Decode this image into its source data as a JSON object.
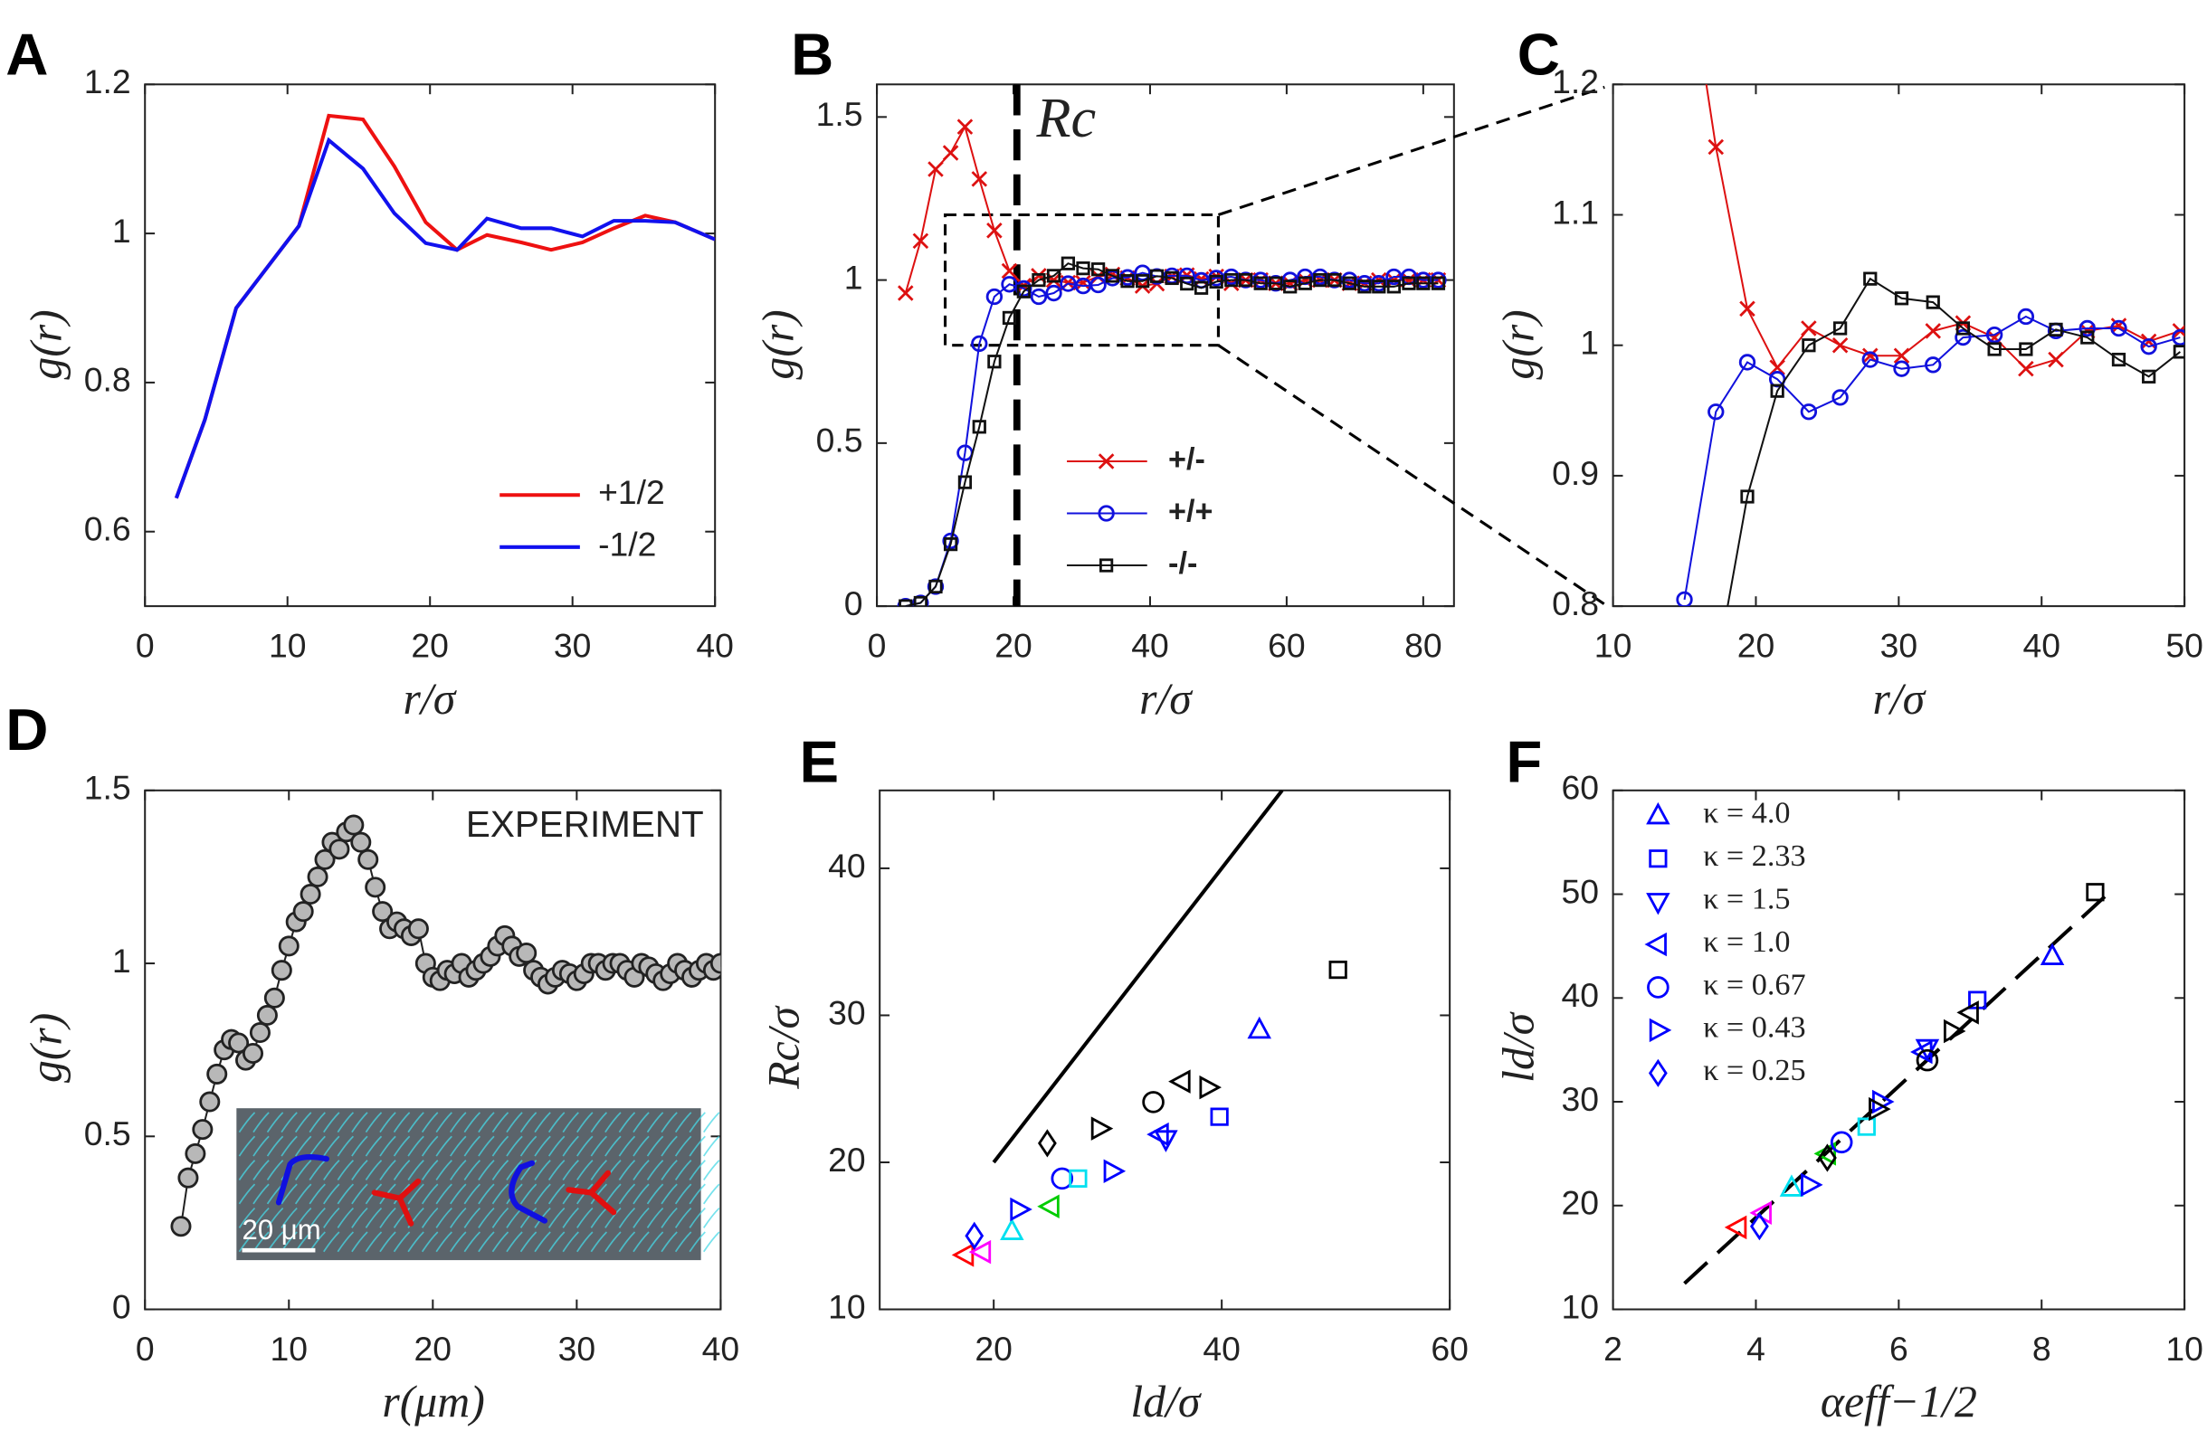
{
  "chart_data": [
    {
      "type": "line",
      "panel_label": "A",
      "xlabel": "r/σ",
      "ylabel": "g(r)",
      "xlim": [
        0,
        40
      ],
      "ylim": [
        0.5,
        1.2
      ],
      "xticks": [
        0,
        10,
        20,
        30,
        40
      ],
      "yticks": [
        0.6,
        0.8,
        1,
        1.2
      ],
      "legend_position": "lower right",
      "series": [
        {
          "name": "+1/2",
          "color": "#ee1111",
          "x": [
            2.2,
            4.2,
            6.4,
            8.6,
            10.8,
            12.9,
            15.3,
            17.5,
            19.7,
            21.9,
            24,
            26.4,
            28.5,
            30.7,
            32.9,
            35.1,
            37.2,
            40
          ],
          "values": [
            0.645,
            0.75,
            0.9,
            0.955,
            1.01,
            1.158,
            1.153,
            1.09,
            1.015,
            0.978,
            0.998,
            0.988,
            0.978,
            0.988,
            1.007,
            1.024,
            1.015,
            0.992
          ]
        },
        {
          "name": "-1/2",
          "color": "#1111ee",
          "x": [
            2.2,
            4.2,
            6.4,
            8.6,
            10.8,
            12.9,
            15.3,
            17.5,
            19.7,
            21.9,
            24,
            26.4,
            28.5,
            30.7,
            32.9,
            35.1,
            37.2,
            40
          ],
          "values": [
            0.645,
            0.75,
            0.9,
            0.955,
            1.01,
            1.125,
            1.087,
            1.027,
            0.987,
            0.978,
            1.02,
            1.007,
            1.007,
            0.996,
            1.017,
            1.017,
            1.015,
            0.992
          ]
        }
      ]
    },
    {
      "type": "line",
      "panel_label": "B",
      "xlabel": "r/σ",
      "ylabel": "g(r)",
      "xlim": [
        0,
        84.5
      ],
      "ylim": [
        0,
        1.6
      ],
      "xticks": [
        0,
        20,
        40,
        60,
        80
      ],
      "yticks": [
        0,
        0.5,
        1,
        1.5
      ],
      "legend_position": "lower center",
      "vline": {
        "x": 20.5,
        "label": "Rc"
      },
      "zoom_box": {
        "xlim": [
          10,
          50
        ],
        "ylim": [
          0.8,
          1.2
        ]
      },
      "series": [
        {
          "name": "+/-",
          "color": "#dd1111",
          "marker": "x",
          "x": [
            4.2,
            6.4,
            8.6,
            10.8,
            12.9,
            15,
            17.2,
            19.4,
            21.5,
            23.7,
            25.9,
            28,
            30.2,
            32.4,
            34.5,
            36.7,
            38.9,
            41,
            43.2,
            45.4,
            47.5,
            49.7,
            51.9,
            54,
            56.2,
            58.4,
            60.5,
            62.7,
            64.9,
            67,
            69.2,
            71.4,
            73.5,
            75.7,
            77.9,
            80,
            82.2
          ],
          "values": [
            0.96,
            1.12,
            1.34,
            1.39,
            1.47,
            1.31,
            1.152,
            1.028,
            0.983,
            1.013,
            1.0,
            0.992,
            0.992,
            1.011,
            1.017,
            1.006,
            0.982,
            0.989,
            1.011,
            1.015,
            1.003,
            1.011,
            0.99,
            1.0,
            1.0,
            0.99,
            0.99,
            1.0,
            1.0,
            1.0,
            0.99,
            0.99,
            1.0,
            1.0,
            1.0,
            1.0,
            1.0
          ]
        },
        {
          "name": "+/+",
          "color": "#1111dd",
          "marker": "circle",
          "x": [
            4.2,
            6.4,
            8.6,
            10.8,
            12.9,
            15,
            17.2,
            19.4,
            21.5,
            23.7,
            25.9,
            28,
            30.2,
            32.4,
            34.5,
            36.7,
            38.9,
            41,
            43.2,
            45.4,
            47.5,
            49.7,
            51.9,
            54,
            56.2,
            58.4,
            60.5,
            62.7,
            64.9,
            67,
            69.2,
            71.4,
            73.5,
            75.7,
            77.9,
            80,
            82.2
          ],
          "values": [
            0,
            0.01,
            0.06,
            0.2,
            0.47,
            0.805,
            0.949,
            0.987,
            0.974,
            0.949,
            0.96,
            0.989,
            0.982,
            0.985,
            1.006,
            1.008,
            1.022,
            1.011,
            1.013,
            1.013,
            0.999,
            1.006,
            1.01,
            1.0,
            1.0,
            0.99,
            1.0,
            1.01,
            1.01,
            1.0,
            1.0,
            0.99,
            0.99,
            1.01,
            1.01,
            1.0,
            1.0
          ]
        },
        {
          "name": "-/-",
          "color": "#111111",
          "marker": "square",
          "x": [
            4.2,
            6.4,
            8.6,
            10.8,
            12.9,
            15,
            17.2,
            19.4,
            21.5,
            23.7,
            25.9,
            28,
            30.2,
            32.4,
            34.5,
            36.7,
            38.9,
            41,
            43.2,
            45.4,
            47.5,
            49.7,
            51.9,
            54,
            56.2,
            58.4,
            60.5,
            62.7,
            64.9,
            67,
            69.2,
            71.4,
            73.5,
            75.7,
            77.9,
            80,
            82.2
          ],
          "values": [
            0,
            0.01,
            0.06,
            0.19,
            0.38,
            0.55,
            0.75,
            0.884,
            0.965,
            1.0,
            1.013,
            1.051,
            1.036,
            1.033,
            1.013,
            0.997,
            0.997,
            1.012,
            1.006,
            0.989,
            0.976,
            0.995,
            1.0,
            1.0,
            0.99,
            0.99,
            0.98,
            0.99,
            1.0,
            1.0,
            0.99,
            0.98,
            0.98,
            0.98,
            0.99,
            0.99,
            0.99
          ]
        }
      ]
    },
    {
      "type": "line",
      "panel_label": "C",
      "xlabel": "r/σ",
      "ylabel": "g(r)",
      "xlim": [
        10,
        50
      ],
      "ylim": [
        0.8,
        1.2
      ],
      "xticks": [
        10,
        20,
        30,
        40,
        50
      ],
      "yticks": [
        0.8,
        0.9,
        1,
        1.1,
        1.2
      ],
      "series": [
        {
          "color": "#dd1111",
          "marker": "x",
          "x": [
            15,
            17.2,
            19.4,
            21.5,
            23.7,
            25.9,
            28,
            30.2,
            32.4,
            34.5,
            36.7,
            38.9,
            41,
            43.2,
            45.4,
            47.5,
            49.7
          ],
          "values": [
            1.31,
            1.152,
            1.028,
            0.983,
            1.013,
            1.0,
            0.992,
            0.992,
            1.011,
            1.017,
            1.006,
            0.982,
            0.989,
            1.011,
            1.015,
            1.003,
            1.011
          ]
        },
        {
          "color": "#1111dd",
          "marker": "circle",
          "x": [
            15,
            17.2,
            19.4,
            21.5,
            23.7,
            25.9,
            28,
            30.2,
            32.4,
            34.5,
            36.7,
            38.9,
            41,
            43.2,
            45.4,
            47.5,
            49.7
          ],
          "values": [
            0.805,
            0.949,
            0.987,
            0.974,
            0.949,
            0.96,
            0.989,
            0.982,
            0.985,
            1.006,
            1.008,
            1.022,
            1.011,
            1.013,
            1.013,
            0.999,
            1.006
          ]
        },
        {
          "color": "#111111",
          "marker": "square",
          "x": [
            15,
            17.2,
            19.4,
            21.5,
            23.7,
            25.9,
            28,
            30.2,
            32.4,
            34.5,
            36.7,
            38.9,
            41,
            43.2,
            45.4,
            47.5,
            49.7
          ],
          "values": [
            0.55,
            0.75,
            0.884,
            0.965,
            1.0,
            1.013,
            1.051,
            1.036,
            1.033,
            1.013,
            0.997,
            0.997,
            1.012,
            1.006,
            0.989,
            0.976,
            0.995
          ]
        }
      ]
    },
    {
      "type": "line",
      "panel_label": "D",
      "xlabel": "r(μm)",
      "ylabel": "g(r)",
      "xlim": [
        0,
        40
      ],
      "ylim": [
        0,
        1.5
      ],
      "xticks": [
        0,
        10,
        20,
        30,
        40
      ],
      "yticks": [
        0,
        0.5,
        1,
        1.5
      ],
      "annotation": "EXPERIMENT",
      "inset_scale_label": "20 μm",
      "series": [
        {
          "color": "#222222",
          "marker": "circle",
          "marker_fill": "#b8b8b8",
          "x": [
            2.5,
            3,
            3.5,
            4,
            4.5,
            5,
            5.5,
            6,
            6.5,
            7,
            7.5,
            8,
            8.5,
            9,
            9.5,
            10,
            10.5,
            11,
            11.5,
            12,
            12.5,
            13,
            13.5,
            14,
            14.5,
            15,
            15.5,
            16,
            16.5,
            17,
            17.5,
            18,
            18.5,
            19,
            19.5,
            20,
            20.5,
            21,
            21.5,
            22,
            22.5,
            23,
            23.5,
            24,
            24.5,
            25,
            25.5,
            26,
            26.5,
            27,
            27.5,
            28,
            28.5,
            29,
            29.5,
            30,
            30.5,
            31,
            31.5,
            32,
            32.5,
            33,
            33.5,
            34,
            34.5,
            35,
            35.5,
            36,
            36.5,
            37,
            37.5,
            38,
            38.5,
            39,
            39.5,
            40
          ],
          "values": [
            0.24,
            0.38,
            0.45,
            0.52,
            0.6,
            0.68,
            0.75,
            0.78,
            0.77,
            0.72,
            0.74,
            0.8,
            0.85,
            0.9,
            0.98,
            1.05,
            1.12,
            1.15,
            1.2,
            1.25,
            1.3,
            1.35,
            1.33,
            1.38,
            1.4,
            1.35,
            1.3,
            1.22,
            1.15,
            1.1,
            1.12,
            1.1,
            1.08,
            1.1,
            1.0,
            0.96,
            0.95,
            0.98,
            0.97,
            1.0,
            0.96,
            0.98,
            1.0,
            1.02,
            1.05,
            1.08,
            1.05,
            1.02,
            1.03,
            0.98,
            0.96,
            0.94,
            0.96,
            0.98,
            0.97,
            0.95,
            0.97,
            1.0,
            1.0,
            0.98,
            1.0,
            1.0,
            0.98,
            0.96,
            1.0,
            0.99,
            0.97,
            0.95,
            0.97,
            1.0,
            0.98,
            0.96,
            0.98,
            1.0,
            0.98,
            1.0
          ]
        }
      ]
    },
    {
      "type": "scatter",
      "panel_label": "E",
      "xlabel": "ld/σ",
      "ylabel": "Rc/σ",
      "xlim": [
        10,
        60
      ],
      "ylim": [
        10,
        45.3
      ],
      "xticks": [
        20,
        40,
        60
      ],
      "yticks": [
        10,
        20,
        30,
        40
      ],
      "series": [
        {
          "color": "#000000",
          "style": "solid",
          "x": [
            20,
            45.3
          ],
          "values": [
            20,
            45.3
          ]
        },
        {
          "x": [
            17.5,
            19,
            18.3,
            21.6,
            22.2,
            25,
            26,
            27.4,
            30.4,
            35.1,
            34.6,
            39.8,
            24.7,
            29.3,
            34,
            36.5,
            38.8,
            43.3,
            50.2
          ],
          "values": [
            13.7,
            13.9,
            15,
            15.3,
            16.8,
            17,
            18.9,
            18.9,
            19.4,
            21.6,
            21.9,
            23.1,
            21.3,
            22.3,
            24.1,
            25.5,
            25.1,
            29,
            33.1
          ],
          "markers": [
            "triangle-left",
            "triangle-left",
            "diamond",
            "triangle-up",
            "triangle-right",
            "triangle-left",
            "circle",
            "square",
            "triangle-right",
            "triangle-down",
            "triangle-left",
            "square",
            "diamond",
            "triangle-right",
            "circle",
            "triangle-left",
            "triangle-right",
            "triangle-up",
            "square"
          ],
          "colors": [
            "#ff0000",
            "#ff00ff",
            "#0000ff",
            "#00e0f0",
            "#0000ff",
            "#00cc00",
            "#0000ff",
            "#00e0f0",
            "#0000ff",
            "#0000ff",
            "#0000ff",
            "#0000ff",
            "#000000",
            "#000000",
            "#000000",
            "#000000",
            "#000000",
            "#0000ff",
            "#000000"
          ]
        }
      ]
    },
    {
      "type": "scatter",
      "panel_label": "F",
      "xlabel": "αeff−1/2",
      "ylabel": "ld/σ",
      "xlim": [
        2,
        10
      ],
      "ylim": [
        10,
        60
      ],
      "xticks": [
        2,
        4,
        6,
        8,
        10
      ],
      "yticks": [
        10,
        20,
        30,
        40,
        50,
        60
      ],
      "legend_position": "upper left",
      "legend_color": "#0000ff",
      "legend": [
        {
          "marker": "triangle-up",
          "label": "κ = 4.0"
        },
        {
          "marker": "square",
          "label": "κ = 2.33"
        },
        {
          "marker": "triangle-down",
          "label": "κ = 1.5"
        },
        {
          "marker": "triangle-left",
          "label": "κ = 1.0"
        },
        {
          "marker": "circle",
          "label": "κ = 0.67"
        },
        {
          "marker": "triangle-right",
          "label": "κ = 0.43"
        },
        {
          "marker": "diamond",
          "label": "κ = 0.25"
        }
      ],
      "series": [
        {
          "color": "#000000",
          "style": "dashed",
          "x": [
            3,
            9
          ],
          "values": [
            12.5,
            50.5
          ]
        },
        {
          "x": [
            3.75,
            4.1,
            4.05,
            4.5,
            4.75,
            5,
            5.2,
            5.55,
            5.75,
            6.4,
            6.35,
            7.1,
            5,
            6.75,
            6.4,
            7,
            5.7,
            8.15,
            8.75
          ],
          "values": [
            17.9,
            19.3,
            18,
            21.7,
            22,
            25,
            26.1,
            27.6,
            30,
            35.2,
            34.8,
            39.8,
            24.6,
            36.8,
            34,
            38.6,
            29.3,
            44,
            50.2
          ],
          "markers": [
            "triangle-left",
            "triangle-left",
            "diamond",
            "triangle-up",
            "triangle-right",
            "triangle-left",
            "circle",
            "square",
            "triangle-right",
            "triangle-down",
            "triangle-left",
            "square",
            "diamond",
            "triangle-right",
            "circle",
            "triangle-left",
            "triangle-right",
            "triangle-up",
            "square"
          ],
          "colors": [
            "#ff0000",
            "#ff00ff",
            "#0000ff",
            "#00e0f0",
            "#0000ff",
            "#00cc00",
            "#0000ff",
            "#00e0f0",
            "#0000ff",
            "#0000ff",
            "#0000ff",
            "#0000ff",
            "#000000",
            "#000000",
            "#000000",
            "#000000",
            "#000000",
            "#0000ff",
            "#000000"
          ]
        }
      ]
    }
  ]
}
